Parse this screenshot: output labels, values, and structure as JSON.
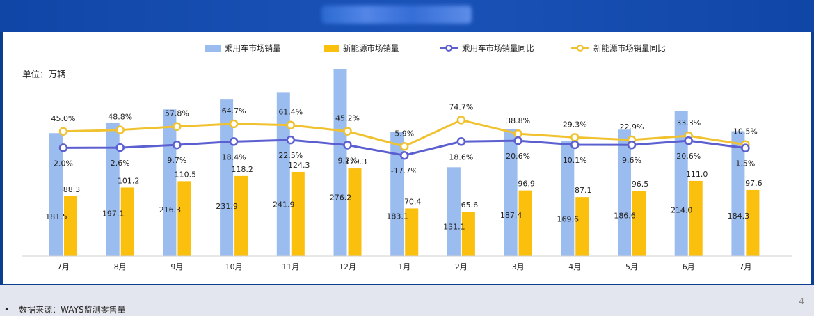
{
  "header": {
    "title": ""
  },
  "footer": {
    "source_bullet": "•",
    "source": "数据来源：WAYS监测零售量",
    "page_number": "4"
  },
  "colors": {
    "frame": "#0b3d91",
    "passenger_bar": "#9bbcef",
    "nev_bar": "#fbbf0d",
    "passenger_line": "#5b5fcf",
    "nev_line": "#f0c230"
  },
  "chart_data": {
    "type": "bar",
    "unit_label": "单位：万辆",
    "categories": [
      "7月",
      "8月",
      "9月",
      "10月",
      "11月",
      "12月",
      "1月",
      "2月",
      "3月",
      "4月",
      "5月",
      "6月",
      "7月"
    ],
    "series": [
      {
        "name": "乘用车市场销量",
        "kind": "bar",
        "values": [
          181.5,
          197.1,
          216.3,
          231.9,
          241.9,
          276.2,
          183.1,
          131.1,
          187.4,
          169.6,
          186.6,
          214.0,
          184.3
        ]
      },
      {
        "name": "新能源市场销量",
        "kind": "bar",
        "values": [
          88.3,
          101.2,
          110.5,
          118.2,
          124.3,
          129.3,
          70.4,
          65.6,
          96.9,
          87.1,
          96.5,
          111.0,
          97.6
        ]
      },
      {
        "name": "乘用车市场销量同比",
        "kind": "line",
        "values": [
          2.0,
          2.6,
          9.7,
          18.4,
          22.5,
          9.2,
          -17.7,
          18.6,
          20.6,
          10.1,
          9.6,
          20.6,
          1.5
        ]
      },
      {
        "name": "新能源市场销量同比",
        "kind": "line",
        "values": [
          45.0,
          48.8,
          57.8,
          64.7,
          61.4,
          45.2,
          5.9,
          74.7,
          38.8,
          29.3,
          22.9,
          33.3,
          10.5
        ]
      }
    ],
    "bar_value_labels": [
      [
        "181.5",
        "197.1",
        "216.3",
        "231.9",
        "241.9",
        "276.2",
        "183.1",
        "131.1",
        "187.4",
        "169.6",
        "186.6",
        "214.0",
        "184.3"
      ],
      [
        "88.3",
        "101.2",
        "110.5",
        "118.2",
        "124.3",
        "129.3",
        "70.4",
        "65.6",
        "96.9",
        "87.1",
        "96.5",
        "111.0",
        "97.6"
      ]
    ],
    "line_value_labels": [
      [
        "2.0%",
        "2.6%",
        "9.7%",
        "18.4%",
        "22.5%",
        "9.2%",
        "-17.7%",
        "18.6%",
        "20.6%",
        "10.1%",
        "9.6%",
        "20.6%",
        "1.5%"
      ],
      [
        "45.0%",
        "48.8%",
        "57.8%",
        "64.7%",
        "61.4%",
        "45.2%",
        "5.9%",
        "74.7%",
        "38.8%",
        "29.3%",
        "22.9%",
        "33.3%",
        "10.5%"
      ]
    ],
    "bar_ylim": [
      0,
      276.2
    ],
    "legend_position": "top"
  }
}
